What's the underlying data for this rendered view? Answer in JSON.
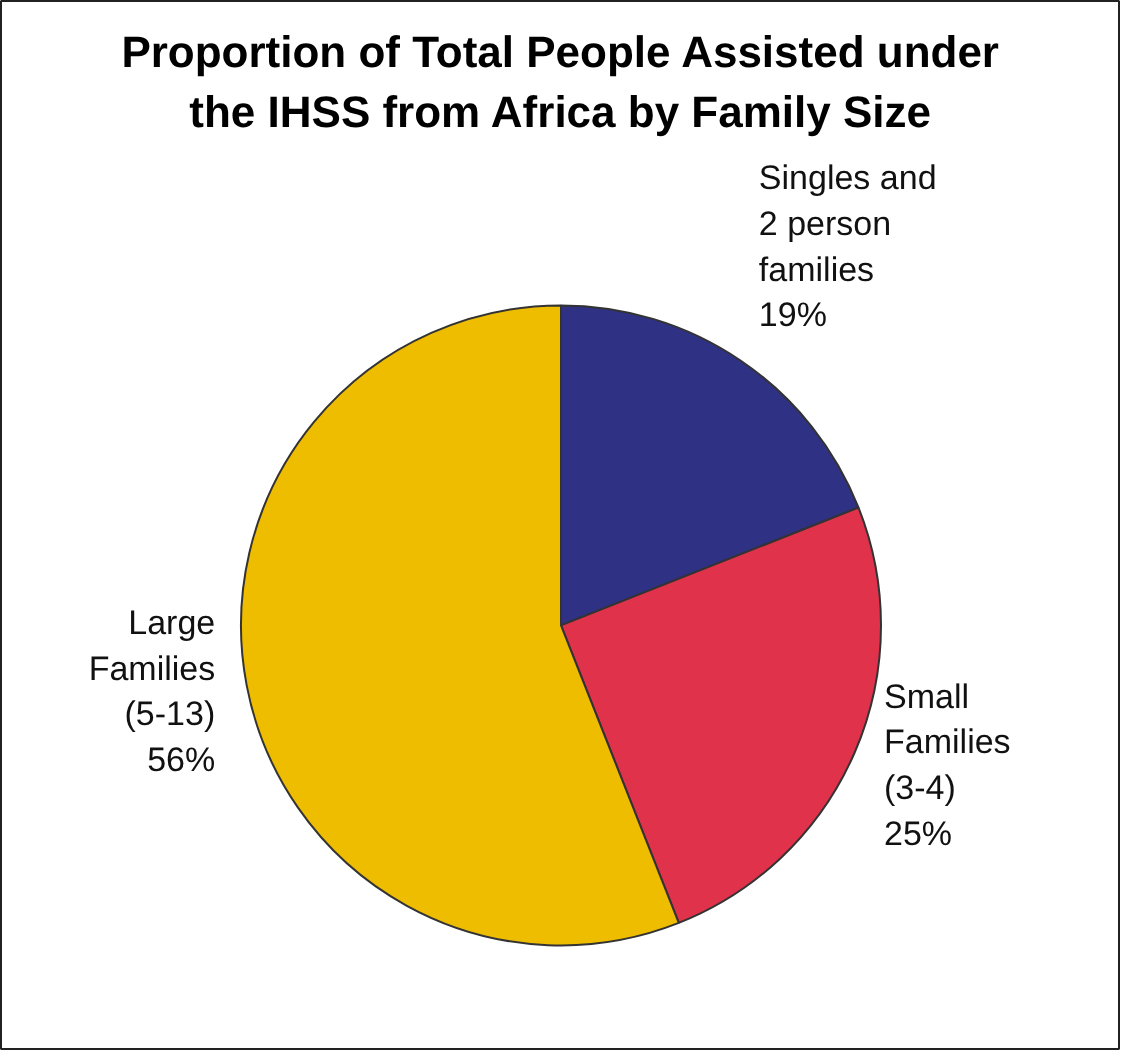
{
  "chart_data": {
    "type": "pie",
    "title": "Proportion of Total People Assisted under the IHSS from Africa by Family Size",
    "categories": [
      "Singles and 2 person families",
      "Small Families (3-4)",
      "Large Families (5-13)"
    ],
    "values": [
      19,
      25,
      56
    ],
    "value_labels": [
      "19%",
      "25%",
      "56%"
    ],
    "colors": [
      "#2e3184",
      "#e0324b",
      "#efbd00"
    ]
  }
}
